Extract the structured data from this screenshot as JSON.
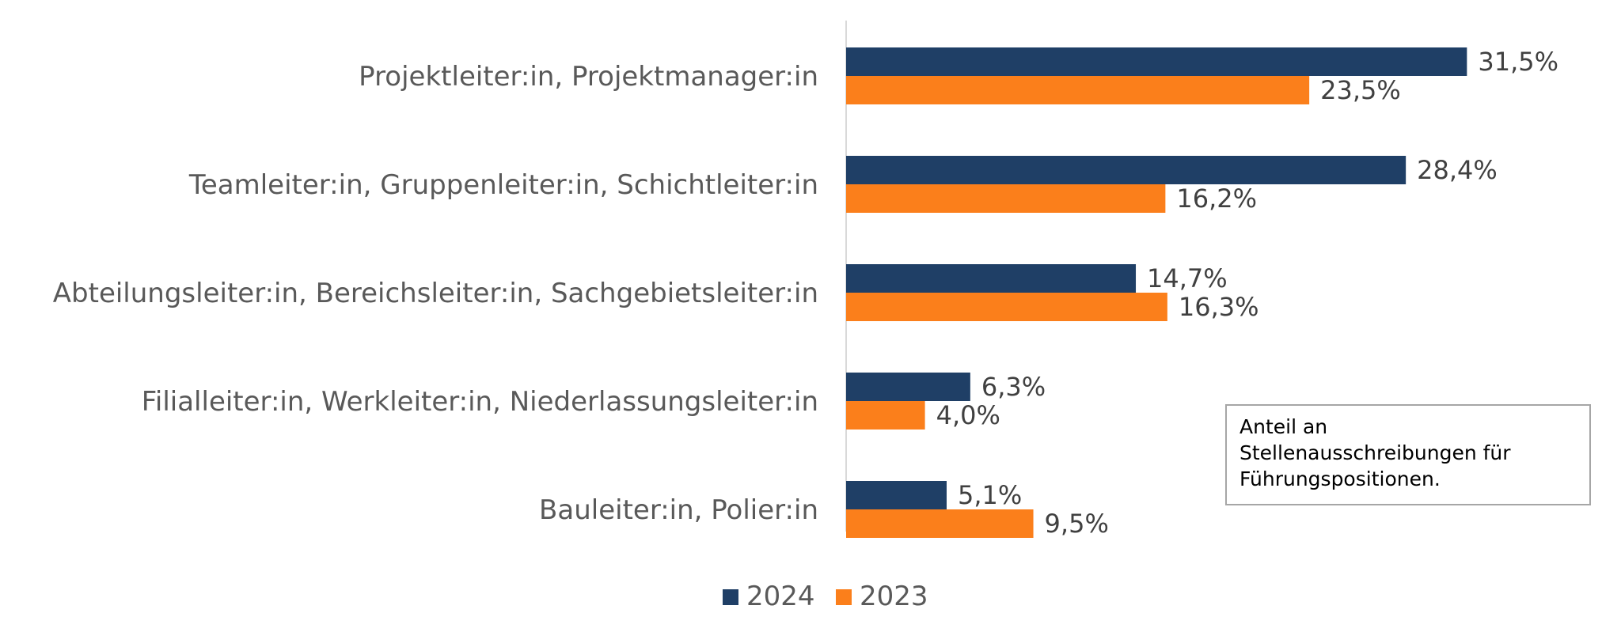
{
  "chart_data": {
    "type": "bar",
    "orientation": "horizontal",
    "categories": [
      "Projektleiter:in, Projektmanager:in",
      "Teamleiter:in, Gruppenleiter:in, Schichtleiter:in",
      "Abteilungsleiter:in, Bereichsleiter:in, Sachgebietsleiter:in",
      "Filialleiter:in, Werkleiter:in, Niederlassungsleiter:in",
      "Bauleiter:in, Polier:in"
    ],
    "series": [
      {
        "name": "2024",
        "color": "#1f3f66",
        "values": [
          31.5,
          28.4,
          14.7,
          6.3,
          5.1
        ],
        "labels": [
          "31,5%",
          "28,4%",
          "14,7%",
          "6,3%",
          "5,1%"
        ]
      },
      {
        "name": "2023",
        "color": "#fb7f1b",
        "values": [
          23.5,
          16.2,
          16.3,
          4.0,
          9.5
        ],
        "labels": [
          "23,5%",
          "16,2%",
          "16,3%",
          "4,0%",
          "9,5%"
        ]
      }
    ],
    "xlim": [
      0,
      35
    ],
    "grid": false,
    "legend": "bottom-center",
    "annotation": "Anteil an\nStellenausschreibungen für\nFührungspositionen."
  }
}
